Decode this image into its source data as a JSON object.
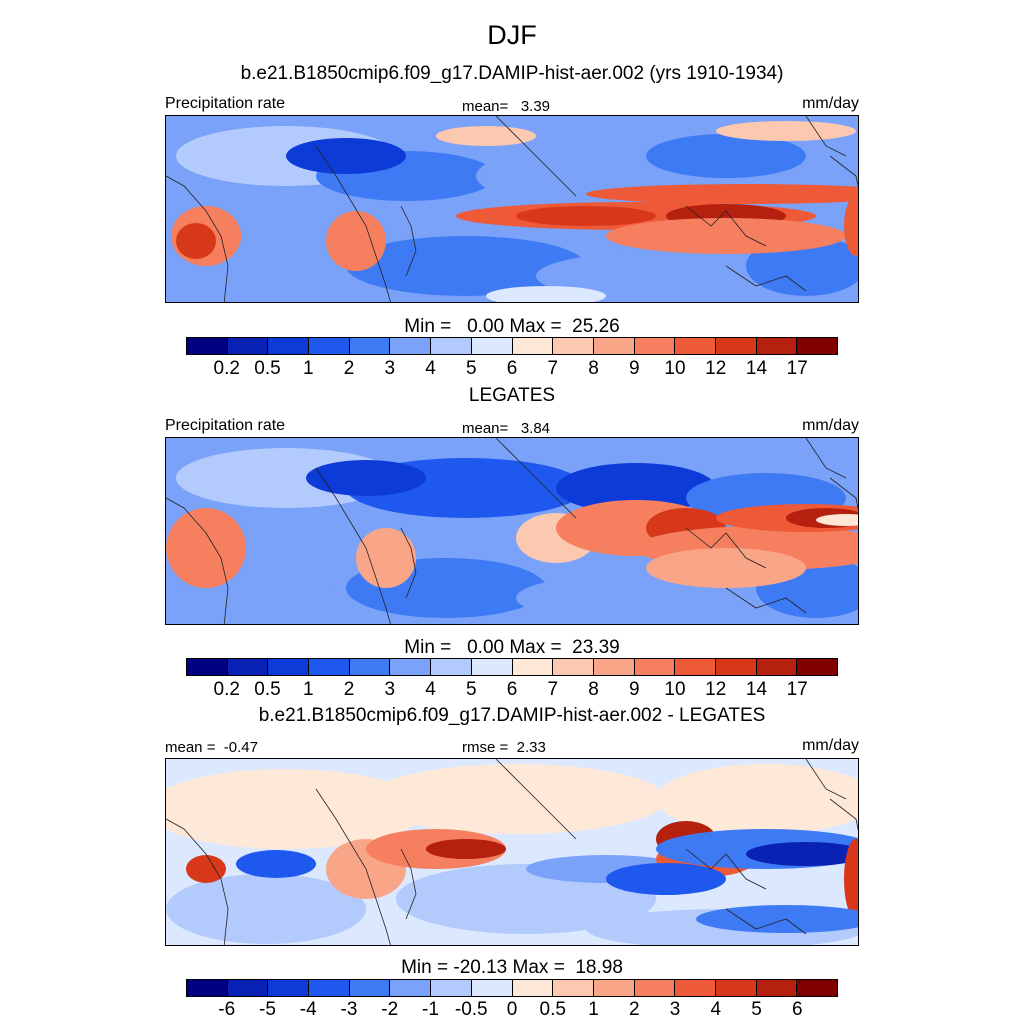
{
  "main_title": "DJF",
  "model_title": "b.e21.B1850cmip6.f09_g17.DAMIP-hist-aer.002 (yrs 1910-1934)",
  "colors": {
    "seq": [
      "#000080",
      "#0a22b4",
      "#0d3bd8",
      "#1e58ee",
      "#3f7af5",
      "#7aa2f8",
      "#b3cbfc",
      "#dce8fe",
      "#fee8d8",
      "#fcc8b0",
      "#f9a588",
      "#f57f5f",
      "#ee5a37",
      "#d8381a",
      "#b5200f",
      "#800000"
    ],
    "diff": [
      "#000080",
      "#0a22b4",
      "#0d3bd8",
      "#1e58ee",
      "#3f7af5",
      "#7aa2f8",
      "#b3cbfc",
      "#dce8fe",
      "#fee8d8",
      "#fcc8b0",
      "#f9a588",
      "#f57f5f",
      "#ee5a37",
      "#d8381a",
      "#b5200f",
      "#800000"
    ]
  },
  "chart_data": [
    {
      "type": "heatmap",
      "variable": "Precipitation rate",
      "units": "mm/day",
      "mean_label": "mean=",
      "mean": "3.39",
      "stats": "Min =   0.00 Max =  25.26",
      "levels": [
        "0.2",
        "0.5",
        "1",
        "2",
        "3",
        "4",
        "5",
        "6",
        "7",
        "8",
        "9",
        "10",
        "12",
        "14",
        "17"
      ]
    },
    {
      "type": "heatmap",
      "title": "LEGATES",
      "variable": "Precipitation rate",
      "units": "mm/day",
      "mean_label": "mean=",
      "mean": "3.84",
      "stats": "Min =   0.00 Max =  23.39",
      "levels": [
        "0.2",
        "0.5",
        "1",
        "2",
        "3",
        "4",
        "5",
        "6",
        "7",
        "8",
        "9",
        "10",
        "12",
        "14",
        "17"
      ]
    },
    {
      "type": "heatmap",
      "title": "b.e21.B1850cmip6.f09_g17.DAMIP-hist-aer.002 - LEGATES",
      "units": "mm/day",
      "mean_label": "mean =",
      "mean": "-0.47",
      "rmse_label": "rmse =",
      "rmse": "2.33",
      "stats": "Min = -20.13 Max =  18.98",
      "levels": [
        "-6",
        "-5",
        "-4",
        "-3",
        "-2",
        "-1",
        "-0.5",
        "0",
        "0.5",
        "1",
        "2",
        "3",
        "4",
        "5",
        "6"
      ]
    }
  ]
}
